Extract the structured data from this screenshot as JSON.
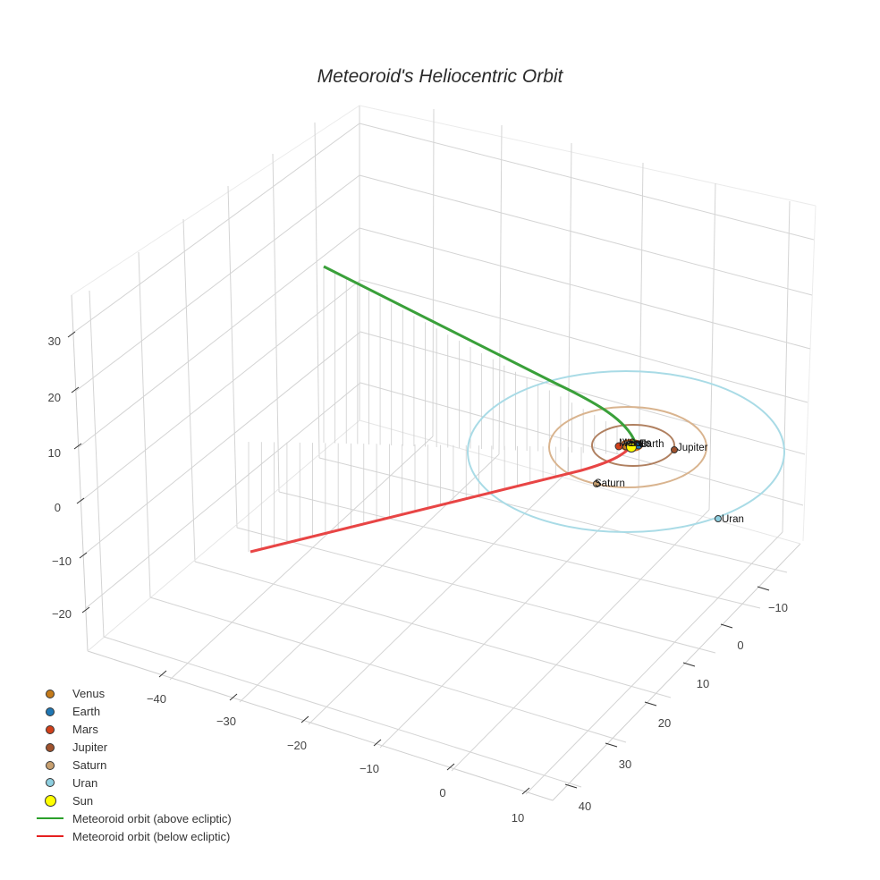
{
  "chart_data": {
    "type": "scatter3d",
    "title": "Meteoroid's Heliocentric Orbit",
    "axes": {
      "x": {
        "ticks": [
          -40,
          -30,
          -20,
          -10,
          0,
          10
        ],
        "tick_labels": [
          "−40",
          "−30",
          "−20",
          "−10",
          "0",
          "10"
        ]
      },
      "y": {
        "ticks": [
          -10,
          0,
          10,
          20,
          30,
          40
        ],
        "tick_labels": [
          "−10",
          "0",
          "10",
          "20",
          "30",
          "40"
        ]
      },
      "z": {
        "ticks": [
          -20,
          -10,
          0,
          10,
          20,
          30
        ],
        "tick_labels": [
          "−20",
          "−10",
          "0",
          "10",
          "20",
          "30"
        ]
      },
      "grid": true
    },
    "planets": [
      {
        "name": "Venus",
        "color": "#c47a1a",
        "orbit_radius_au": 0.72
      },
      {
        "name": "Earth",
        "color": "#1f77b4",
        "orbit_radius_au": 1.0
      },
      {
        "name": "Mars",
        "color": "#d1401a",
        "orbit_radius_au": 1.52
      },
      {
        "name": "Jupiter",
        "color": "#a0522d",
        "orbit_radius_au": 5.2
      },
      {
        "name": "Saturn",
        "color": "#c8a070",
        "orbit_radius_au": 9.5
      },
      {
        "name": "Uran",
        "color": "#8ecfe0",
        "orbit_radius_au": 19.2
      }
    ],
    "sun": {
      "name": "Sun",
      "color": "#ffff00"
    },
    "series": [
      {
        "name": "Meteoroid orbit (above ecliptic)",
        "color": "#2ca02c",
        "start": [
          -38,
          -5,
          30
        ],
        "end": [
          0,
          0,
          0
        ]
      },
      {
        "name": "Meteoroid orbit (below ecliptic)",
        "color": "#e62020",
        "start": [
          0,
          0,
          0
        ],
        "end": [
          -38,
          25,
          -5
        ]
      }
    ],
    "legend_position": "bottom-left"
  },
  "title": "Meteoroid's Heliocentric Orbit",
  "legend": [
    {
      "label": "Venus",
      "kind": "dot",
      "color": "#c47a1a"
    },
    {
      "label": "Earth",
      "kind": "dot",
      "color": "#1f77b4"
    },
    {
      "label": "Mars",
      "kind": "dot",
      "color": "#d1401a"
    },
    {
      "label": "Jupiter",
      "kind": "dot",
      "color": "#a0522d"
    },
    {
      "label": "Saturn",
      "kind": "dot",
      "color": "#c8a070"
    },
    {
      "label": "Uran",
      "kind": "dot",
      "color": "#8ecfe0"
    },
    {
      "label": "Sun",
      "kind": "bigdot",
      "color": "#ffff00"
    },
    {
      "label": "Meteoroid orbit (above ecliptic)",
      "kind": "line",
      "color": "#2ca02c"
    },
    {
      "label": "Meteoroid orbit (below ecliptic)",
      "kind": "line",
      "color": "#e62020"
    }
  ],
  "point_labels": {
    "venus": "Venus",
    "earth": "Earth",
    "mars": "Mars",
    "jupiter": "Jupiter",
    "saturn": "Saturn",
    "uran": "Uran",
    "sun": "Sun"
  },
  "z_ticks": [
    "30",
    "20",
    "10",
    "0",
    "−10",
    "−20"
  ],
  "x_ticks": [
    "−40",
    "−30",
    "−20",
    "−10",
    "0",
    "10"
  ],
  "y_ticks": [
    "−10",
    "0",
    "10",
    "20",
    "30",
    "40"
  ]
}
